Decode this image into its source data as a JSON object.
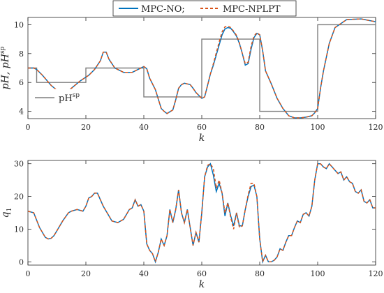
{
  "legend": {
    "entries": [
      {
        "label": "MPC-NO;",
        "color": "#0072BD",
        "style": "solid"
      },
      {
        "label": "MPC-NPLPT",
        "color": "#D95319",
        "style": "dashed"
      }
    ]
  },
  "chart_data": [
    {
      "type": "line",
      "xlabel": "k",
      "ylabel": "pH, pH",
      "ylabel_sup": "sp",
      "xlim": [
        0,
        120
      ],
      "ylim": [
        3.5,
        10.5
      ],
      "xticks": [
        0,
        20,
        40,
        60,
        80,
        100,
        120
      ],
      "yticks": [
        4,
        6,
        8,
        10
      ],
      "grid": false,
      "inner_legend": {
        "label": "pH",
        "label_sup": "sp",
        "color": "#7f7f7f",
        "placement": "bottom-left"
      },
      "setpoint": {
        "name": "pHsp",
        "x": [
          0,
          3,
          3,
          20,
          20,
          40,
          40,
          60,
          60,
          80,
          80,
          100,
          100,
          120
        ],
        "y": [
          7,
          7,
          6,
          6,
          7,
          7,
          5,
          5,
          9,
          9,
          4,
          4,
          10,
          10
        ],
        "color": "#7f7f7f"
      },
      "series": [
        {
          "name": "MPC-NO",
          "color": "#0072BD",
          "x": [
            0,
            2,
            3,
            5,
            8,
            11,
            13,
            15,
            18,
            21,
            23,
            25,
            26,
            27,
            28,
            30,
            33,
            36,
            38,
            40,
            41,
            42,
            44,
            46,
            47,
            48,
            50,
            51,
            52,
            53,
            54,
            55,
            56,
            57,
            58,
            60,
            61,
            62,
            63,
            64,
            66,
            67,
            68,
            69,
            70,
            71,
            72,
            73,
            74,
            75,
            76,
            77,
            78,
            79,
            80,
            81,
            82,
            84,
            86,
            88,
            90,
            92,
            94,
            96,
            98,
            99,
            100,
            101,
            102,
            104,
            106,
            110,
            115,
            120
          ],
          "y": [
            7.0,
            7.0,
            6.9,
            6.5,
            5.8,
            5.3,
            5.3,
            5.6,
            6.1,
            6.5,
            6.9,
            7.5,
            8.1,
            8.1,
            7.6,
            7.0,
            6.7,
            6.7,
            6.9,
            7.1,
            6.95,
            6.3,
            5.5,
            4.2,
            4.0,
            3.85,
            4.1,
            4.8,
            5.6,
            5.85,
            5.95,
            5.9,
            5.85,
            5.6,
            5.3,
            4.9,
            5.0,
            5.8,
            6.6,
            7.2,
            8.6,
            9.3,
            9.7,
            9.8,
            9.75,
            9.5,
            9.2,
            8.7,
            8.0,
            7.2,
            7.3,
            8.3,
            9.1,
            9.4,
            9.3,
            8.2,
            6.8,
            5.9,
            4.9,
            4.2,
            3.7,
            3.55,
            3.55,
            3.6,
            3.7,
            3.9,
            4.2,
            5.6,
            6.8,
            8.7,
            9.8,
            10.35,
            10.4,
            10.2
          ]
        },
        {
          "name": "MPC-NPLPT",
          "color": "#D95319",
          "x": [
            0,
            2,
            3,
            5,
            8,
            11,
            13,
            15,
            18,
            21,
            23,
            25,
            26,
            27,
            28,
            30,
            33,
            36,
            38,
            40,
            41,
            42,
            44,
            46,
            47,
            48,
            50,
            51,
            52,
            53,
            54,
            55,
            56,
            57,
            58,
            60,
            61,
            62,
            63,
            64,
            66,
            67,
            68,
            69,
            70,
            71,
            72,
            73,
            74,
            75,
            76,
            77,
            78,
            79,
            80,
            81,
            82,
            84,
            86,
            88,
            90,
            92,
            94,
            96,
            98,
            99,
            100,
            101,
            102,
            104,
            106,
            110,
            115,
            120
          ],
          "y": [
            7.0,
            7.0,
            6.9,
            6.5,
            5.8,
            5.3,
            5.3,
            5.6,
            6.1,
            6.5,
            6.9,
            7.5,
            8.1,
            8.1,
            7.6,
            7.0,
            6.7,
            6.7,
            6.9,
            7.1,
            6.95,
            6.3,
            5.5,
            4.2,
            4.0,
            3.85,
            4.1,
            4.8,
            5.6,
            5.85,
            5.95,
            5.9,
            5.85,
            5.6,
            5.3,
            4.9,
            5.0,
            5.8,
            6.6,
            7.3,
            8.8,
            9.5,
            9.85,
            9.9,
            9.8,
            9.55,
            9.25,
            8.75,
            8.0,
            7.3,
            7.4,
            8.5,
            9.2,
            9.45,
            9.3,
            8.2,
            6.8,
            5.9,
            4.9,
            4.2,
            3.7,
            3.55,
            3.55,
            3.6,
            3.7,
            3.9,
            4.2,
            5.6,
            6.8,
            8.7,
            9.8,
            10.35,
            10.4,
            10.2
          ]
        }
      ]
    },
    {
      "type": "line",
      "xlabel": "k",
      "ylabel": "q",
      "ylabel_sub": "1",
      "xlim": [
        0,
        120
      ],
      "ylim": [
        -1,
        31
      ],
      "xticks": [
        0,
        20,
        40,
        60,
        80,
        100,
        120
      ],
      "yticks": [
        0,
        10,
        20,
        30
      ],
      "grid": false,
      "series": [
        {
          "name": "MPC-NO",
          "color": "#0072BD",
          "x": [
            0,
            2,
            4,
            6,
            7,
            8,
            9,
            10,
            12,
            14,
            15,
            17,
            19,
            20,
            21,
            22,
            23,
            24,
            26,
            28,
            29,
            31,
            33,
            35,
            36,
            37,
            38,
            39,
            40,
            41,
            42,
            43,
            44,
            45,
            46,
            47,
            48,
            49,
            50,
            51,
            52,
            53,
            54,
            55,
            56,
            57,
            58,
            59,
            60,
            61,
            62,
            63,
            64,
            65,
            66,
            67,
            68,
            69,
            70,
            71,
            72,
            73,
            74,
            75,
            76,
            77,
            78,
            79,
            80,
            81,
            82,
            83,
            84,
            85,
            86,
            87,
            88,
            89,
            90,
            91,
            92,
            93,
            94,
            95,
            96,
            97,
            98,
            99,
            100,
            101,
            102,
            103,
            104,
            105,
            106,
            107,
            108,
            109,
            110,
            111,
            112,
            113,
            114,
            115,
            116,
            117,
            118,
            119,
            120
          ],
          "y": [
            15.5,
            15.0,
            10.5,
            7.5,
            7.0,
            7.2,
            8.0,
            9.5,
            12.5,
            15.0,
            15.5,
            16.0,
            15.5,
            17.0,
            19.5,
            20.0,
            21.0,
            21.0,
            17.0,
            14.0,
            12.5,
            12.0,
            13.0,
            16.0,
            16.5,
            19.0,
            17.0,
            17.5,
            15.5,
            5.5,
            3.5,
            2.5,
            0.0,
            3.0,
            7.0,
            5.0,
            8.0,
            16.0,
            12.0,
            16.0,
            22.0,
            15.0,
            12.0,
            16.0,
            10.5,
            5.0,
            9.0,
            6.0,
            15.0,
            26.0,
            29.0,
            30.0,
            26.5,
            21.5,
            24.0,
            21.0,
            14.0,
            18.0,
            14.0,
            11.0,
            15.0,
            11.0,
            11.0,
            16.0,
            20.0,
            23.0,
            23.5,
            20.0,
            7.0,
            0.0,
            2.0,
            0.0,
            0.0,
            0.5,
            1.5,
            4.0,
            3.5,
            6.0,
            8.0,
            8.0,
            10.5,
            12.5,
            12.0,
            14.5,
            15.0,
            14.0,
            17.0,
            25.0,
            30.0,
            30.0,
            29.0,
            28.5,
            30.0,
            29.0,
            28.0,
            27.0,
            27.5,
            25.0,
            26.0,
            24.5,
            24.0,
            21.5,
            21.0,
            22.0,
            18.5,
            18.0,
            19.0,
            16.5,
            16.5
          ]
        },
        {
          "name": "MPC-NPLPT",
          "color": "#D95319",
          "x": [
            0,
            2,
            4,
            6,
            7,
            8,
            9,
            10,
            12,
            14,
            15,
            17,
            19,
            20,
            21,
            22,
            23,
            24,
            26,
            28,
            29,
            31,
            33,
            35,
            36,
            37,
            38,
            39,
            40,
            41,
            42,
            43,
            44,
            45,
            46,
            47,
            48,
            49,
            50,
            51,
            52,
            53,
            54,
            55,
            56,
            57,
            58,
            59,
            60,
            61,
            62,
            63,
            64,
            65,
            66,
            67,
            68,
            69,
            70,
            71,
            72,
            73,
            74,
            75,
            76,
            77,
            78,
            79,
            80,
            81,
            82,
            83,
            84,
            85,
            86,
            87,
            88,
            89,
            90,
            91,
            92,
            93,
            94,
            95,
            96,
            97,
            98,
            99,
            100,
            101,
            102,
            103,
            104,
            105,
            106,
            107,
            108,
            109,
            110,
            111,
            112,
            113,
            114,
            115,
            116,
            117,
            118,
            119,
            120
          ],
          "y": [
            15.5,
            15.0,
            10.5,
            7.5,
            7.0,
            7.2,
            8.0,
            9.5,
            12.5,
            15.0,
            15.5,
            16.0,
            15.5,
            17.0,
            19.5,
            20.0,
            21.0,
            21.0,
            17.0,
            14.0,
            12.5,
            12.0,
            13.0,
            16.0,
            16.5,
            19.0,
            17.0,
            17.5,
            15.5,
            5.5,
            3.5,
            2.5,
            0.0,
            3.0,
            7.0,
            5.0,
            8.0,
            16.0,
            12.0,
            16.0,
            22.0,
            15.0,
            12.0,
            16.0,
            10.5,
            5.0,
            9.0,
            6.0,
            15.0,
            26.0,
            29.5,
            30.0,
            28.5,
            22.5,
            25.0,
            21.0,
            15.0,
            18.0,
            13.5,
            10.0,
            15.0,
            10.5,
            11.0,
            16.0,
            20.5,
            24.0,
            24.0,
            20.0,
            7.0,
            0.0,
            2.0,
            0.0,
            0.0,
            0.5,
            1.5,
            4.0,
            3.5,
            6.0,
            8.0,
            8.0,
            10.5,
            12.5,
            12.0,
            14.5,
            15.0,
            14.0,
            17.0,
            25.0,
            30.0,
            30.0,
            29.0,
            28.5,
            30.0,
            29.0,
            28.0,
            27.0,
            27.5,
            25.0,
            26.0,
            24.5,
            24.0,
            21.5,
            21.0,
            22.0,
            18.5,
            18.0,
            19.0,
            16.5,
            16.5
          ]
        }
      ]
    }
  ]
}
